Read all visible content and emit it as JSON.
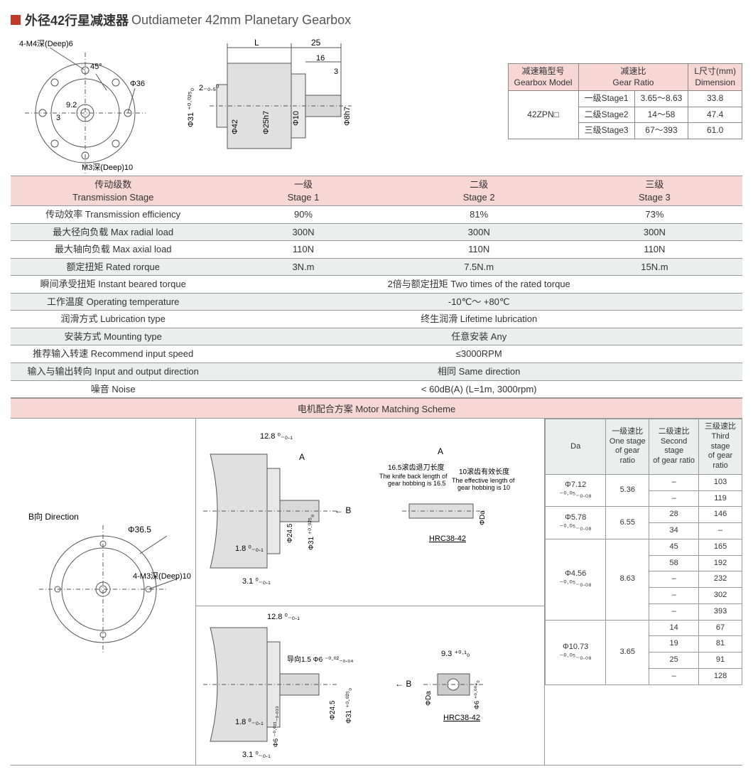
{
  "title": {
    "cn": "外径42行星减速器",
    "en": "Outdiameter 42mm Planetary Gearbox"
  },
  "mini_table": {
    "headers": [
      {
        "cn": "减速箱型号",
        "en": "Gearbox Model"
      },
      {
        "cn": "减速比",
        "en": "Gear Ratio"
      },
      {
        "cn": "L尺寸(mm)",
        "en": "Dimension"
      }
    ],
    "model": "42ZPN□",
    "rows": [
      {
        "stage": "一级Stage1",
        "ratio": "3.65～8.63",
        "L": "33.8"
      },
      {
        "stage": "二级Stage2",
        "ratio": "14～58",
        "L": "47.4"
      },
      {
        "stage": "三级Stage3",
        "ratio": "67～393",
        "L": "61.0"
      }
    ]
  },
  "front_view": {
    "labels": [
      "4-M4深(Deep)6",
      "45°",
      "Φ36",
      "9.2",
      "3",
      "M3深(Deep)10"
    ]
  },
  "side_view": {
    "labels": [
      "L",
      "25",
      "2₋₀.₅⁰",
      "16",
      "3",
      "Φ31 ⁺⁰·⁰²⁵₀",
      "Φ42",
      "Φ25h7",
      "Φ10",
      "Φ8h7"
    ]
  },
  "spec_table": {
    "headers": [
      {
        "cn": "传动级数",
        "en": "Transmission Stage"
      },
      {
        "cn": "一级",
        "en": "Stage 1"
      },
      {
        "cn": "二级",
        "en": "Stage 2"
      },
      {
        "cn": "三级",
        "en": "Stage 3"
      }
    ],
    "rows": [
      {
        "label": "传动效率 Transmission efficiency",
        "v": [
          "90%",
          "81%",
          "73%"
        ]
      },
      {
        "label": "最大径向负载 Max radial load",
        "v": [
          "300N",
          "300N",
          "300N"
        ]
      },
      {
        "label": "最大轴向负载 Max axial load",
        "v": [
          "110N",
          "110N",
          "110N"
        ]
      },
      {
        "label": "额定扭矩 Rated rorque",
        "v": [
          "3N.m",
          "7.5N.m",
          "15N.m"
        ]
      },
      {
        "label": "瞬间承受扭矩 Instant beared torque",
        "span": "2倍与额定扭矩 Two times of the rated torque"
      },
      {
        "label": "工作温度 Operating temperature",
        "span": "-10℃～ +80℃"
      },
      {
        "label": "润滑方式 Lubrication type",
        "span": "终生润滑 Lifetime lubrication"
      },
      {
        "label": "安装方式 Mounting type",
        "span": "任意安装 Any"
      },
      {
        "label": "推荐输入转速 Recommend input speed",
        "span": "≤3000RPM"
      },
      {
        "label": "输入与输出转向 Input and output direction",
        "span": "相同 Same direction"
      },
      {
        "label": "噪音 Noise",
        "span": "< 60dB(A) (L=1m, 3000rpm)"
      }
    ]
  },
  "motor_matching_header": "电机配合方案 Motor Matching Scheme",
  "b_direction_labels": {
    "dir": "B向 Direction",
    "dia": "Φ36.5",
    "hole": "4-M3深(Deep)10"
  },
  "mid_diag1_labels": [
    "12.8 ⁰₋₀.₁",
    "A",
    "Φ24.5",
    "Φ31 ⁺⁰·⁰²⁵₀",
    "1.8 ⁰₋₀.₁",
    "3.1 ⁰₋₀.₁",
    "← B",
    "A",
    "16.5滚齿退刀长度",
    "The knife back length of gear hobbing is 16.5",
    "10滚齿有效长度",
    "The effective length of gear hobbing is 10",
    "ΦDa",
    "HRC38-42"
  ],
  "mid_diag2_labels": [
    "12.8 ⁰₋₀.₁",
    "导向1.5 Φ6 ⁻⁰·⁰²₋₀.₀₄",
    "Φ24.5",
    "Φ31 ⁺⁰·⁰²⁵₀",
    "1.8 ⁰₋₀.₁",
    "Φ6 ⁻⁰·⁰²¹₋₀.₀₃₃",
    "3.1 ⁰₋₀.₁",
    "← B",
    "9.3 ⁺⁰·¹₀",
    "ΦDa",
    "Φ6 ⁺⁰·⁰⁰⁹₀",
    "HRC38-42"
  ],
  "ratio_table": {
    "headers": [
      "Da",
      "一级速比\nOne stage\nof gear ratio",
      "二级速比\nSecond stage\nof gear ratio",
      "三级速比\nThird stage\nof gear ratio"
    ],
    "groups": [
      {
        "da": "Φ7.12 ⁻⁰·⁰⁵₋₀.₀₈",
        "one": "5.36",
        "rows": [
          [
            "–",
            "103"
          ],
          [
            "–",
            "119"
          ]
        ]
      },
      {
        "da": "Φ5.78 ⁻⁰·⁰⁵₋₀.₀₈",
        "one": "6.55",
        "rows": [
          [
            "28",
            "146"
          ],
          [
            "34",
            "–"
          ]
        ]
      },
      {
        "da": "Φ4.56 ⁻⁰·⁰⁵₋₀.₀₈",
        "one": "8.63",
        "rows": [
          [
            "45",
            "165"
          ],
          [
            "58",
            "192"
          ],
          [
            "–",
            "232"
          ],
          [
            "–",
            "302"
          ],
          [
            "–",
            "393"
          ]
        ]
      },
      {
        "da": "Φ10.73 ⁻⁰·⁰⁵₋₀.₀₈",
        "one": "3.65",
        "rows": [
          [
            "14",
            "67"
          ],
          [
            "19",
            "81"
          ],
          [
            "25",
            "91"
          ],
          [
            "–",
            "128"
          ]
        ]
      }
    ]
  },
  "colors": {
    "header_bg": "#f7d7d4",
    "alt_bg": "#eceded",
    "border": "#999",
    "accent": "#c0392b"
  }
}
